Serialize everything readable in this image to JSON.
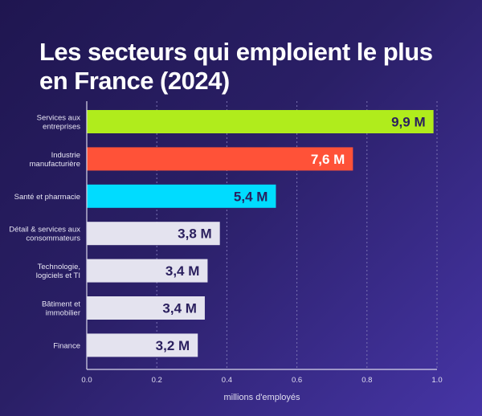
{
  "chart_data": {
    "type": "bar",
    "orientation": "horizontal",
    "title": "Les secteurs qui emploient le plus en France (2024)",
    "xlabel": "millions d'employés",
    "ylabel": "",
    "xlim": [
      0,
      1.0
    ],
    "xticks": [
      "0.0",
      "0.2",
      "0.4",
      "0.6",
      "0.8",
      "1.0"
    ],
    "grid": "vertical dashed",
    "categories": [
      [
        "Services aux",
        "entreprises"
      ],
      [
        "Industrie",
        "manufacturière"
      ],
      [
        "Santé et pharmacie"
      ],
      [
        "Détail & services aux",
        "consommateurs"
      ],
      [
        "Technologie,",
        "logiciels et TI"
      ],
      [
        "Bâtiment et",
        "immobilier"
      ],
      [
        "Finance"
      ]
    ],
    "values": [
      0.99,
      0.76,
      0.54,
      0.38,
      0.345,
      0.337,
      0.317
    ],
    "data_labels": [
      "9,9 M",
      "7,6 M",
      "5,4 M",
      "3,8 M",
      "3,4 M",
      "3,4 M",
      "3,2 M"
    ],
    "colors": [
      "#b0ec1c",
      "#ff5238",
      "#00dcff",
      "#e4e3ef",
      "#e4e3ef",
      "#e4e3ef",
      "#e4e3ef"
    ],
    "label_colors": [
      "#2a1f5e",
      "#ffffff",
      "#2a1f5e",
      "#2a1f5e",
      "#2a1f5e",
      "#2a1f5e",
      "#2a1f5e"
    ]
  }
}
